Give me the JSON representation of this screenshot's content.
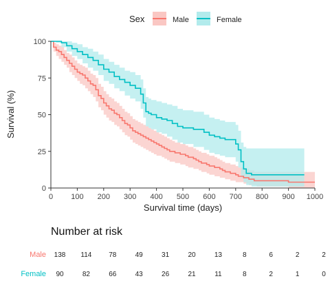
{
  "chart_data": {
    "type": "line",
    "subtype": "kaplan-meier",
    "xlabel": "Survival time (days)",
    "ylabel": "Survival (%)",
    "xlim": [
      0,
      1000
    ],
    "ylim": [
      0,
      100
    ],
    "xticks": [
      0,
      100,
      200,
      300,
      400,
      500,
      600,
      700,
      800,
      900,
      1000
    ],
    "yticks": [
      0,
      25,
      50,
      75,
      100
    ],
    "grid": false,
    "legend": {
      "title": "Sex",
      "position": "top",
      "labels": [
        "Male",
        "Female"
      ]
    },
    "series": [
      {
        "name": "Male",
        "color": "#F8766D",
        "band_color": "#FAC7C3",
        "x": [
          0,
          10,
          20,
          30,
          40,
          50,
          60,
          70,
          80,
          90,
          100,
          110,
          120,
          130,
          140,
          150,
          160,
          170,
          180,
          190,
          200,
          210,
          220,
          230,
          240,
          250,
          260,
          270,
          280,
          290,
          300,
          310,
          320,
          330,
          340,
          350,
          360,
          370,
          380,
          390,
          400,
          410,
          420,
          430,
          440,
          450,
          460,
          470,
          480,
          490,
          500,
          510,
          520,
          530,
          540,
          550,
          560,
          570,
          580,
          590,
          600,
          610,
          620,
          630,
          640,
          650,
          660,
          670,
          680,
          690,
          700,
          710,
          720,
          730,
          740,
          750,
          760,
          770,
          780,
          790,
          800,
          850,
          900,
          950,
          1000
        ],
        "y": [
          100,
          96,
          94,
          93,
          91,
          89,
          87,
          85,
          83,
          81,
          79,
          78,
          77,
          75,
          73,
          71,
          70,
          67,
          63,
          61,
          58,
          56,
          54,
          53,
          51,
          50,
          48,
          46,
          44,
          43,
          41,
          39,
          38,
          37,
          36,
          35,
          34,
          33,
          32,
          31,
          30,
          29,
          28,
          27,
          26,
          25,
          25,
          24,
          24,
          23,
          23,
          22,
          21,
          21,
          20,
          19,
          18,
          17,
          17,
          16,
          15,
          15,
          14,
          14,
          13,
          12,
          11,
          11,
          10,
          10,
          9,
          8,
          8,
          7,
          7,
          6,
          6,
          5,
          5,
          5,
          5,
          5,
          4,
          4,
          4
        ],
        "lower": [
          100,
          93,
          90,
          88,
          86,
          84,
          82,
          79,
          77,
          75,
          73,
          71,
          70,
          68,
          66,
          64,
          62,
          59,
          55,
          53,
          50,
          48,
          46,
          45,
          43,
          42,
          40,
          38,
          36,
          35,
          33,
          31,
          30,
          29,
          28,
          27,
          26,
          25,
          24,
          23,
          22,
          22,
          21,
          20,
          19,
          18,
          18,
          17,
          17,
          16,
          16,
          15,
          14,
          14,
          13,
          13,
          12,
          11,
          11,
          10,
          9,
          9,
          8,
          8,
          7,
          7,
          6,
          6,
          5,
          5,
          4,
          4,
          4,
          3,
          3,
          2,
          2,
          2,
          1,
          1,
          1,
          1,
          0,
          0,
          0
        ],
        "upper": [
          100,
          99,
          98,
          97,
          96,
          94,
          92,
          91,
          89,
          87,
          85,
          84,
          83,
          82,
          80,
          78,
          77,
          75,
          71,
          69,
          66,
          64,
          62,
          61,
          59,
          58,
          56,
          54,
          52,
          51,
          49,
          47,
          46,
          45,
          44,
          43,
          42,
          41,
          40,
          39,
          38,
          37,
          36,
          35,
          34,
          33,
          32,
          31,
          31,
          30,
          30,
          29,
          28,
          28,
          27,
          26,
          25,
          24,
          24,
          23,
          22,
          22,
          21,
          20,
          19,
          18,
          17,
          17,
          16,
          16,
          15,
          14,
          14,
          13,
          13,
          12,
          12,
          11,
          11,
          11,
          11,
          11,
          11,
          11,
          11
        ]
      },
      {
        "name": "Female",
        "color": "#00BFC4",
        "band_color": "#B2EBEC",
        "x": [
          0,
          20,
          40,
          60,
          80,
          100,
          120,
          140,
          160,
          180,
          200,
          220,
          240,
          260,
          280,
          300,
          320,
          340,
          350,
          360,
          370,
          380,
          400,
          420,
          440,
          460,
          480,
          500,
          520,
          540,
          560,
          580,
          600,
          620,
          640,
          660,
          680,
          700,
          710,
          720,
          730,
          740,
          760,
          800,
          850,
          900,
          960
        ],
        "y": [
          100,
          100,
          99,
          97,
          95,
          93,
          91,
          89,
          87,
          84,
          81,
          79,
          76,
          74,
          72,
          70,
          68,
          64,
          58,
          52,
          51,
          50,
          48,
          47,
          46,
          44,
          42,
          41,
          41,
          40,
          40,
          38,
          36,
          35,
          34,
          33,
          33,
          30,
          26,
          18,
          13,
          10,
          9,
          9,
          9,
          9,
          9
        ],
        "lower": [
          100,
          99,
          96,
          93,
          90,
          88,
          85,
          82,
          80,
          77,
          73,
          71,
          68,
          66,
          63,
          61,
          59,
          54,
          48,
          42,
          41,
          40,
          38,
          37,
          35,
          33,
          31,
          30,
          30,
          28,
          28,
          26,
          24,
          23,
          22,
          21,
          21,
          18,
          14,
          7,
          4,
          2,
          1,
          1,
          1,
          1,
          1
        ],
        "upper": [
          100,
          100,
          100,
          100,
          99,
          98,
          96,
          95,
          93,
          91,
          88,
          86,
          84,
          82,
          80,
          79,
          77,
          74,
          68,
          62,
          61,
          60,
          59,
          58,
          57,
          56,
          54,
          53,
          53,
          52,
          52,
          50,
          48,
          47,
          46,
          45,
          45,
          43,
          39,
          31,
          28,
          27,
          27,
          27,
          27,
          27,
          27
        ]
      }
    ],
    "risk_table": {
      "title": "Number at risk",
      "times": [
        0,
        100,
        200,
        300,
        400,
        500,
        600,
        700,
        800,
        900,
        1000
      ],
      "rows": [
        {
          "label": "Male",
          "color": "#F8766D",
          "values": [
            "138",
            "114",
            "78",
            "49",
            "31",
            "20",
            "13",
            "8",
            "6",
            "2",
            "2"
          ]
        },
        {
          "label": "Female",
          "color": "#00BFC4",
          "values": [
            "90",
            "82",
            "66",
            "43",
            "26",
            "21",
            "11",
            "8",
            "2",
            "1",
            "0"
          ]
        }
      ]
    }
  }
}
